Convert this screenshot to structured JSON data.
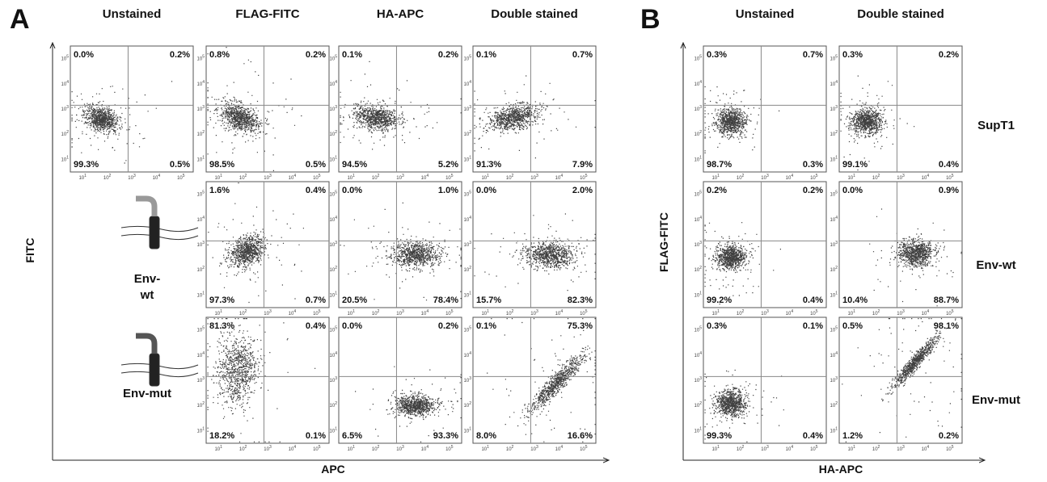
{
  "axis_ticks": {
    "base": "10",
    "exponents": [
      "1",
      "2",
      "3",
      "4",
      "5"
    ]
  },
  "panels": [
    {
      "label": "A",
      "columns": [
        "Unstained",
        "FLAG-FITC",
        "HA-APC",
        "Double stained"
      ],
      "y_axis": "FITC",
      "x_axis": "APC",
      "row_labels": [
        null,
        [
          "Env-",
          "wt"
        ],
        [
          "Env-mut"
        ]
      ],
      "plots": [
        [
          {
            "ul": "0.0%",
            "ur": "0.2%",
            "ll": "99.3%",
            "lr": "0.5%"
          },
          {
            "ul": "0.8%",
            "ur": "0.2%",
            "ll": "98.5%",
            "lr": "0.5%"
          },
          {
            "ul": "0.1%",
            "ur": "0.2%",
            "ll": "94.5%",
            "lr": "5.2%"
          },
          {
            "ul": "0.1%",
            "ur": "0.7%",
            "ll": "91.3%",
            "lr": "7.9%"
          }
        ],
        [
          null,
          {
            "ul": "1.6%",
            "ur": "0.4%",
            "ll": "97.3%",
            "lr": "0.7%"
          },
          {
            "ul": "0.0%",
            "ur": "1.0%",
            "ll": "20.5%",
            "lr": "78.4%"
          },
          {
            "ul": "0.0%",
            "ur": "2.0%",
            "ll": "15.7%",
            "lr": "82.3%"
          }
        ],
        [
          null,
          {
            "ul": "81.3%",
            "ur": "0.4%",
            "ll": "18.2%",
            "lr": "0.1%"
          },
          {
            "ul": "0.0%",
            "ur": "0.2%",
            "ll": "6.5%",
            "lr": "93.3%"
          },
          {
            "ul": "0.1%",
            "ur": "75.3%",
            "ll": "8.0%",
            "lr": "16.6%"
          }
        ]
      ]
    },
    {
      "label": "B",
      "columns": [
        "Unstained",
        "Double stained"
      ],
      "y_axis": "FLAG-FITC",
      "x_axis": "HA-APC",
      "row_labels": [
        [
          "SupT1"
        ],
        [
          "Env-wt"
        ],
        [
          "Env-mut"
        ]
      ],
      "plots": [
        [
          {
            "ul": "0.3%",
            "ur": "0.7%",
            "ll": "98.7%",
            "lr": "0.3%"
          },
          {
            "ul": "0.3%",
            "ur": "0.2%",
            "ll": "99.1%",
            "lr": "0.4%"
          }
        ],
        [
          {
            "ul": "0.2%",
            "ur": "0.2%",
            "ll": "99.2%",
            "lr": "0.4%"
          },
          {
            "ul": "0.0%",
            "ur": "0.9%",
            "ll": "10.4%",
            "lr": "88.7%"
          }
        ],
        [
          {
            "ul": "0.3%",
            "ur": "0.1%",
            "ll": "99.3%",
            "lr": "0.4%"
          },
          {
            "ul": "0.5%",
            "ur": "98.1%",
            "ll": "1.2%",
            "lr": "0.2%"
          }
        ]
      ]
    }
  ]
}
